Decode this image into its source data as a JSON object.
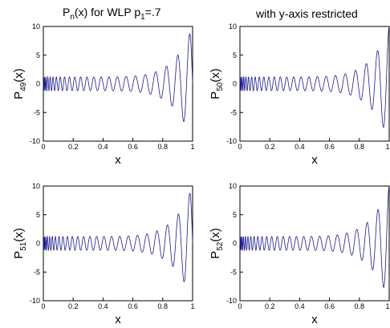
{
  "chart_data": [
    {
      "type": "line",
      "title": "P_n(x) for WLP p_1=.7",
      "ylabel": "P_49(x)",
      "xlabel": "x",
      "xlim": [
        0,
        1
      ],
      "ylim": [
        -10,
        10
      ],
      "xticks": [
        "0",
        "0.2",
        "0.4",
        "0.6",
        "0.8",
        "1"
      ],
      "yticks": [
        "10",
        "5",
        "0",
        "-5",
        "-10"
      ],
      "n": 49,
      "color": "#1a1a8c"
    },
    {
      "type": "line",
      "title": "with y-axis restricted",
      "ylabel": "P_50(x)",
      "xlabel": "x",
      "xlim": [
        0,
        1
      ],
      "ylim": [
        -10,
        10
      ],
      "xticks": [
        "0",
        "0.2",
        "0.4",
        "0.6",
        "0.8",
        "1"
      ],
      "yticks": [
        "10",
        "5",
        "0",
        "-5",
        "-10"
      ],
      "n": 50,
      "color": "#1a1a8c"
    },
    {
      "type": "line",
      "title": "",
      "ylabel": "P_51(x)",
      "xlabel": "x",
      "xlim": [
        0,
        1
      ],
      "ylim": [
        -10,
        10
      ],
      "xticks": [
        "0",
        "0.2",
        "0.4",
        "0.6",
        "0.8",
        "1"
      ],
      "yticks": [
        "10",
        "5",
        "0",
        "-5",
        "-10"
      ],
      "n": 51,
      "color": "#1a1a8c"
    },
    {
      "type": "line",
      "title": "",
      "ylabel": "P_52(x)",
      "xlabel": "x",
      "xlim": [
        0,
        1
      ],
      "ylim": [
        -10,
        10
      ],
      "xticks": [
        "0",
        "0.2",
        "0.4",
        "0.6",
        "0.8",
        "1"
      ],
      "yticks": [
        "10",
        "5",
        "0",
        "-5",
        "-10"
      ],
      "n": 52,
      "color": "#1a1a8c"
    }
  ],
  "labels": {
    "title_left_main": "P",
    "title_left_sub": "n",
    "title_left_mid": "(x) for WLP p",
    "title_left_sub2": "1",
    "title_left_end": "=.7",
    "title_right": "with y-axis restricted",
    "xlabel": "x",
    "ylab_p": "P",
    "ylab_x": "(x)",
    "sub_49": "49",
    "sub_50": "50",
    "sub_51": "51",
    "sub_52": "52",
    "xt0": "0",
    "xt1": "0.2",
    "xt2": "0.4",
    "xt3": "0.6",
    "xt4": "0.8",
    "xt5": "1",
    "yt0": "10",
    "yt1": "5",
    "yt2": "0",
    "yt3": "-5",
    "yt4": "-10"
  }
}
